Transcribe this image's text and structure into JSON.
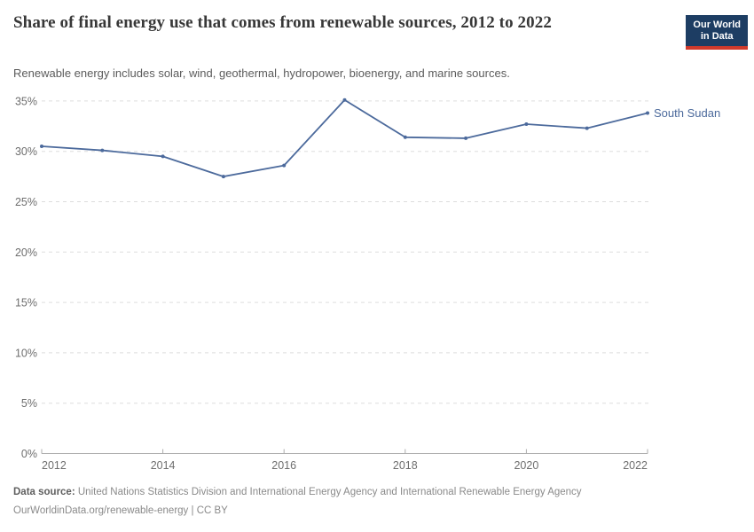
{
  "header": {
    "title": "Share of final energy use that comes from renewable sources, 2012 to 2022",
    "subtitle": "Renewable energy includes solar, wind, geothermal, hydropower, bioenergy, and marine sources.",
    "logo": {
      "line1": "Our World",
      "line2": "in Data",
      "bg_color": "#1d3d63",
      "accent_color": "#d13a2b"
    }
  },
  "chart_data": {
    "type": "line",
    "title": "Share of final energy use that comes from renewable sources, 2012 to 2022",
    "x": [
      2012,
      2013,
      2014,
      2015,
      2016,
      2017,
      2018,
      2019,
      2020,
      2021,
      2022
    ],
    "series": [
      {
        "name": "South Sudan",
        "values": [
          30.5,
          30.1,
          29.5,
          27.5,
          28.6,
          35.1,
          31.4,
          31.3,
          32.7,
          32.3,
          33.8
        ],
        "color": "#4C6A9C"
      }
    ],
    "xlabel": "",
    "ylabel": "",
    "ylim": [
      0,
      35
    ],
    "yticks": [
      {
        "value": 0,
        "label": "0%"
      },
      {
        "value": 5,
        "label": "5%"
      },
      {
        "value": 10,
        "label": "10%"
      },
      {
        "value": 15,
        "label": "15%"
      },
      {
        "value": 20,
        "label": "20%"
      },
      {
        "value": 25,
        "label": "25%"
      },
      {
        "value": 30,
        "label": "30%"
      },
      {
        "value": 35,
        "label": "35%"
      }
    ],
    "xticks": [
      {
        "value": 2012,
        "label": "2012"
      },
      {
        "value": 2014,
        "label": "2014"
      },
      {
        "value": 2016,
        "label": "2016"
      },
      {
        "value": 2018,
        "label": "2018"
      },
      {
        "value": 2020,
        "label": "2020"
      },
      {
        "value": 2022,
        "label": "2022"
      }
    ],
    "grid": "horizontal-dashed",
    "legend_position": "right-of-line-end",
    "grid_color": "#dddddd",
    "axis_color": "#adadad",
    "tick_label_color": "#6e6e6e"
  },
  "footer": {
    "data_source_label": "Data source:",
    "data_source": "United Nations Statistics Division and International Energy Agency and International Renewable Energy Agency",
    "url_text": "OurWorldinData.org/renewable-energy",
    "separator": " | ",
    "license": "CC BY"
  }
}
